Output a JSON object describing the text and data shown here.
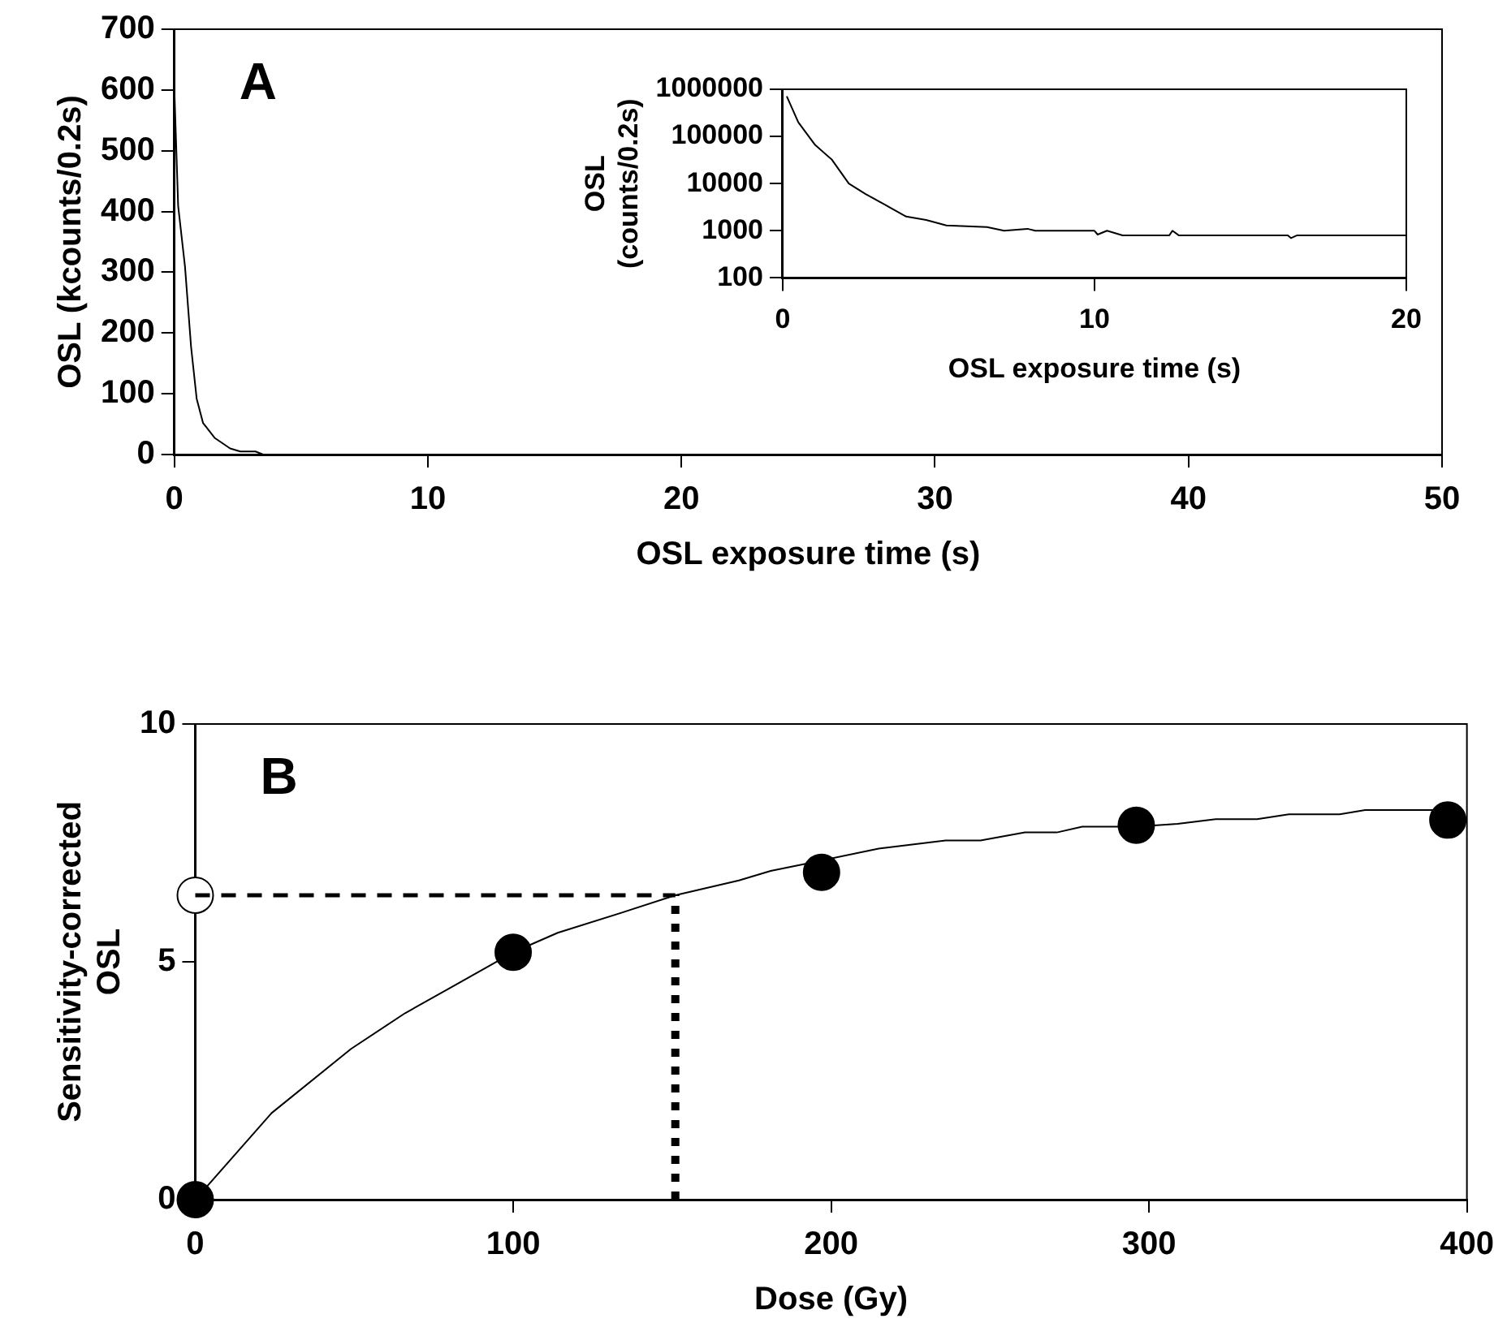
{
  "chart_data": [
    {
      "type": "line",
      "xlabel": "OSL exposure time (s)",
      "ylabel": "OSL (kcounts/0.2s)",
      "annotations": [
        "A"
      ],
      "xlim": [
        0,
        50
      ],
      "xticks": [
        0,
        10,
        20,
        30,
        40,
        50
      ],
      "ylim": [
        0,
        700
      ],
      "yticks": [
        0,
        100,
        200,
        300,
        400,
        500,
        600,
        700
      ],
      "grid": false,
      "legend": false,
      "marker": "none",
      "series": [
        {
          "color": "#000000",
          "x": [
            0,
            0.15,
            0.42,
            0.66,
            0.88,
            1.13,
            1.6,
            2.2,
            2.6,
            3.2,
            3.5,
            50
          ],
          "values": [
            600,
            409,
            309,
            177,
            92,
            52,
            27,
            10,
            5,
            5,
            0,
            0
          ]
        }
      ]
    },
    {
      "type": "line",
      "xlabel": "OSL exposure time (s)",
      "ylabel": "OSL\n(counts/0.2s)",
      "log": "y",
      "xlim": [
        0,
        20
      ],
      "xticks": [
        0,
        10,
        20
      ],
      "ylim": [
        100,
        1000000
      ],
      "yticks": [
        100,
        1000,
        10000,
        100000,
        1000000
      ],
      "grid": false,
      "legend": false,
      "marker": "none",
      "series": [
        {
          "color": "#000000",
          "x": [
            0.13,
            0.5,
            1.04,
            1.58,
            2.12,
            2.66,
            3.3,
            3.96,
            4.6,
            5.25,
            6.55,
            7.1,
            7.85,
            8.1,
            10.0,
            10.1,
            10.4,
            10.9,
            12.4,
            12.5,
            12.7,
            16.2,
            16.3,
            16.5,
            20
          ],
          "values": [
            710000,
            200000,
            66000,
            32000,
            10000,
            6000,
            3500,
            2000,
            1700,
            1300,
            1200,
            1000,
            1100,
            1000,
            1000,
            830,
            1000,
            800,
            800,
            1000,
            800,
            800,
            700,
            800,
            800
          ]
        }
      ]
    },
    {
      "type": "scatter",
      "xlabel": "Dose (Gy)",
      "ylabel": "Sensitivity-corrected\nOSL",
      "annotations": [
        "B"
      ],
      "xlim": [
        0,
        400
      ],
      "xticks": [
        0,
        100,
        200,
        300,
        400
      ],
      "ylim": [
        0,
        10
      ],
      "yticks": [
        0,
        5,
        10
      ],
      "grid": false,
      "legend": false,
      "marker": "circle",
      "series": [
        {
          "type": "line",
          "marker": "none",
          "color": "#000000",
          "x": [
            0,
            24,
            49,
            66,
            82,
            100,
            114,
            134,
            151,
            171,
            181,
            197,
            215,
            236,
            247,
            261,
            271,
            279,
            296,
            309,
            321,
            334,
            344,
            360,
            368,
            395
          ],
          "values": [
            0,
            1.82,
            3.17,
            3.92,
            4.52,
            5.2,
            5.61,
            6.03,
            6.4,
            6.71,
            6.91,
            7.13,
            7.38,
            7.55,
            7.55,
            7.72,
            7.72,
            7.84,
            7.84,
            7.9,
            8.0,
            8.0,
            8.1,
            8.1,
            8.19,
            8.19
          ]
        },
        {
          "type": "line",
          "marker": "none",
          "line_style": "dashed",
          "color": "#000000",
          "x": [
            0,
            151
          ],
          "values": [
            6.4,
            6.4
          ]
        },
        {
          "type": "line",
          "marker": "none",
          "line_style": "dotted",
          "color": "#000000",
          "x": [
            151,
            151
          ],
          "values": [
            0,
            6.4
          ]
        },
        {
          "type": "scatter",
          "color": "#000000",
          "x": [
            0,
            100,
            197,
            296,
            394
          ],
          "values": [
            0,
            5.2,
            6.88,
            7.87,
            7.98
          ]
        },
        {
          "type": "scatter",
          "color": "#ffffff",
          "x": [
            0
          ],
          "values": [
            6.4
          ]
        }
      ]
    }
  ]
}
